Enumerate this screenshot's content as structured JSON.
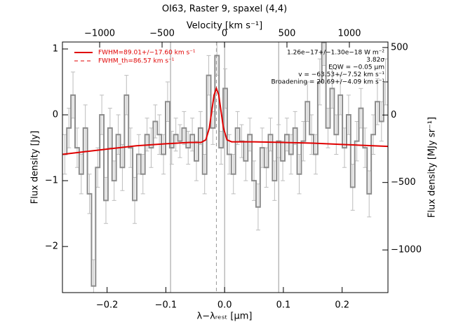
{
  "chart_data": {
    "type": "step",
    "title": "OI63, Raster 9, spaxel (4,4)",
    "xlabel": "λ−λᵣₑₛₜ [μm]",
    "ylabel": "Flux density [Jy]",
    "x2label": "Velocity [km s⁻¹]",
    "y2label": "Flux density [MJy sr⁻¹]",
    "color": "#8c8c8c",
    "error_color": "#bdbdbd",
    "x": [
      -0.272,
      -0.265,
      -0.258,
      -0.251,
      -0.244,
      -0.237,
      -0.23,
      -0.223,
      -0.216,
      -0.209,
      -0.202,
      -0.195,
      -0.188,
      -0.181,
      -0.174,
      -0.167,
      -0.16,
      -0.153,
      -0.146,
      -0.139,
      -0.132,
      -0.125,
      -0.118,
      -0.111,
      -0.104,
      -0.097,
      -0.09,
      -0.083,
      -0.076,
      -0.069,
      -0.062,
      -0.055,
      -0.048,
      -0.041,
      -0.034,
      -0.027,
      -0.02,
      -0.013,
      -0.006,
      0.001,
      0.008,
      0.015,
      0.022,
      0.029,
      0.036,
      0.043,
      0.05,
      0.057,
      0.064,
      0.071,
      0.078,
      0.085,
      0.092,
      0.099,
      0.106,
      0.113,
      0.12,
      0.127,
      0.134,
      0.141,
      0.148,
      0.155,
      0.162,
      0.169,
      0.176,
      0.183,
      0.19,
      0.197,
      0.204,
      0.211,
      0.218,
      0.225,
      0.232,
      0.239,
      0.246,
      0.253,
      0.26,
      0.267,
      0.274
    ],
    "values": [
      -0.6,
      -0.2,
      0.3,
      -0.5,
      -0.9,
      -0.2,
      -1.2,
      -2.6,
      -0.8,
      0.0,
      -1.3,
      -0.2,
      -1.0,
      -0.3,
      -0.8,
      0.3,
      -0.5,
      -1.3,
      -0.6,
      -0.9,
      -0.3,
      -0.5,
      -0.1,
      -0.3,
      -0.6,
      0.2,
      -0.5,
      -0.3,
      -0.4,
      -0.2,
      -0.5,
      -0.3,
      -0.7,
      -0.2,
      -0.9,
      0.6,
      -0.2,
      0.9,
      -0.5,
      0.4,
      -0.6,
      -0.9,
      -0.2,
      -0.4,
      -0.7,
      -0.3,
      -1.0,
      -1.4,
      -0.5,
      -0.8,
      -0.3,
      -1.0,
      -0.4,
      -0.7,
      -0.3,
      -0.6,
      -0.2,
      -0.9,
      -0.4,
      0.2,
      -0.3,
      -0.6,
      0.5,
      1.1,
      -0.2,
      0.4,
      -0.3,
      0.3,
      -0.5,
      0.0,
      -1.1,
      -0.4,
      0.1,
      -0.5,
      -1.2,
      -0.3,
      0.2,
      -0.1,
      0.5
    ],
    "errors": [
      0.3,
      0.3,
      0.35,
      0.3,
      0.3,
      0.35,
      0.3,
      0.4,
      0.3,
      0.3,
      0.35,
      0.3,
      0.3,
      0.3,
      0.35,
      0.3,
      0.3,
      0.35,
      0.3,
      0.3,
      0.25,
      0.3,
      0.25,
      0.3,
      0.3,
      0.3,
      0.25,
      0.25,
      0.25,
      0.25,
      0.25,
      0.25,
      0.3,
      0.25,
      0.3,
      0.3,
      0.25,
      0.3,
      0.25,
      0.3,
      0.3,
      0.3,
      0.25,
      0.25,
      0.3,
      0.25,
      0.3,
      0.35,
      0.3,
      0.3,
      0.25,
      0.3,
      0.25,
      0.3,
      0.25,
      0.3,
      0.25,
      0.3,
      0.3,
      0.3,
      0.3,
      0.3,
      0.35,
      0.35,
      0.3,
      0.3,
      0.3,
      0.3,
      0.3,
      0.3,
      0.35,
      0.3,
      0.3,
      0.3,
      0.35,
      0.3,
      0.35,
      0.3,
      0.35
    ],
    "fit": {
      "name": "FWHM=89.01+/−17.60 km s⁻¹",
      "color": "#e00000",
      "x": [
        -0.276,
        -0.2,
        -0.15,
        -0.1,
        -0.06,
        -0.04,
        -0.032,
        -0.026,
        -0.022,
        -0.018,
        -0.014,
        -0.01,
        -0.006,
        -0.002,
        0.004,
        0.012,
        0.05,
        0.1,
        0.15,
        0.2,
        0.278
      ],
      "values": [
        -0.6,
        -0.52,
        -0.47,
        -0.44,
        -0.42,
        -0.42,
        -0.38,
        -0.2,
        0.05,
        0.3,
        0.4,
        0.3,
        0.05,
        -0.2,
        -0.38,
        -0.41,
        -0.41,
        -0.42,
        -0.43,
        -0.45,
        -0.48
      ]
    },
    "fit_th": {
      "name": "FWHM_th=86.57 km s⁻¹",
      "color": "#e00000"
    },
    "annotations": [
      "1.26e−17+/−1.30e−18 W m⁻²",
      "3.82σ",
      "EQW = −0.05 μm",
      "v = −63.53+/−7.52 km s⁻¹",
      "Broadening = 20.69+/−4.09 km s⁻¹"
    ],
    "reference_lines": [
      -0.092,
      0.0,
      0.092
    ],
    "dashed_line": -0.014,
    "xlim": [
      -0.276,
      0.278
    ],
    "xticks": [
      {
        "value": -0.2,
        "label": "−0.2"
      },
      {
        "value": -0.1,
        "label": "−0.1"
      },
      {
        "value": 0,
        "label": "0.0"
      },
      {
        "value": 0.1,
        "label": "0.1"
      },
      {
        "value": 0.2,
        "label": "0.2"
      }
    ],
    "ylim": [
      -2.7,
      1.106
    ],
    "yticks": [
      {
        "value": -2,
        "label": "−2"
      },
      {
        "value": -1,
        "label": "−1"
      },
      0,
      1
    ],
    "x2lim": [
      -1298,
      1309
    ],
    "x2ticks": [
      {
        "value": -1000,
        "label": "−1000"
      },
      {
        "value": -500,
        "label": "−500"
      },
      0,
      500,
      1000
    ],
    "y2lim": [
      -1316,
      541
    ],
    "y2ticks": [
      {
        "value": -1000,
        "label": "−1000"
      },
      {
        "value": -500,
        "label": "−500"
      },
      0,
      500
    ]
  }
}
